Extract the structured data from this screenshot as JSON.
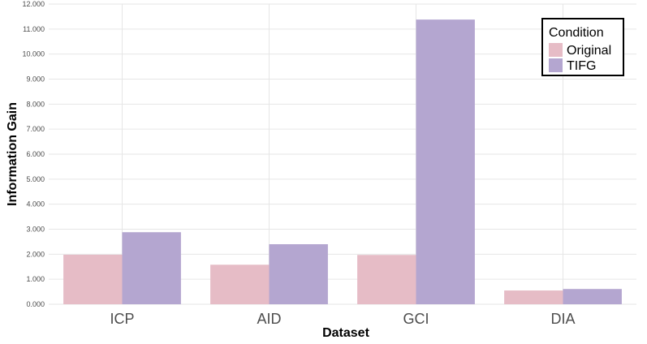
{
  "chart_data": {
    "type": "bar",
    "categories": [
      "ICP",
      "AID",
      "GCI",
      "DIA"
    ],
    "series": [
      {
        "name": "Original",
        "values": [
          1.98,
          1.58,
          1.97,
          0.55
        ],
        "color": "#e6bcc6"
      },
      {
        "name": "TIFG",
        "values": [
          2.88,
          2.4,
          11.38,
          0.61
        ],
        "color": "#b4a6d0"
      }
    ],
    "xlabel": "Dataset",
    "ylabel": "Information Gain",
    "ylim": [
      0,
      12
    ],
    "y_ticks": [
      "0.000",
      "1.000",
      "2.000",
      "3.000",
      "4.000",
      "5.000",
      "6.000",
      "7.000",
      "8.000",
      "9.000",
      "10.000",
      "11.000",
      "12.000"
    ],
    "legend_title": "Condition",
    "legend_position": "top-right",
    "grid": true
  }
}
